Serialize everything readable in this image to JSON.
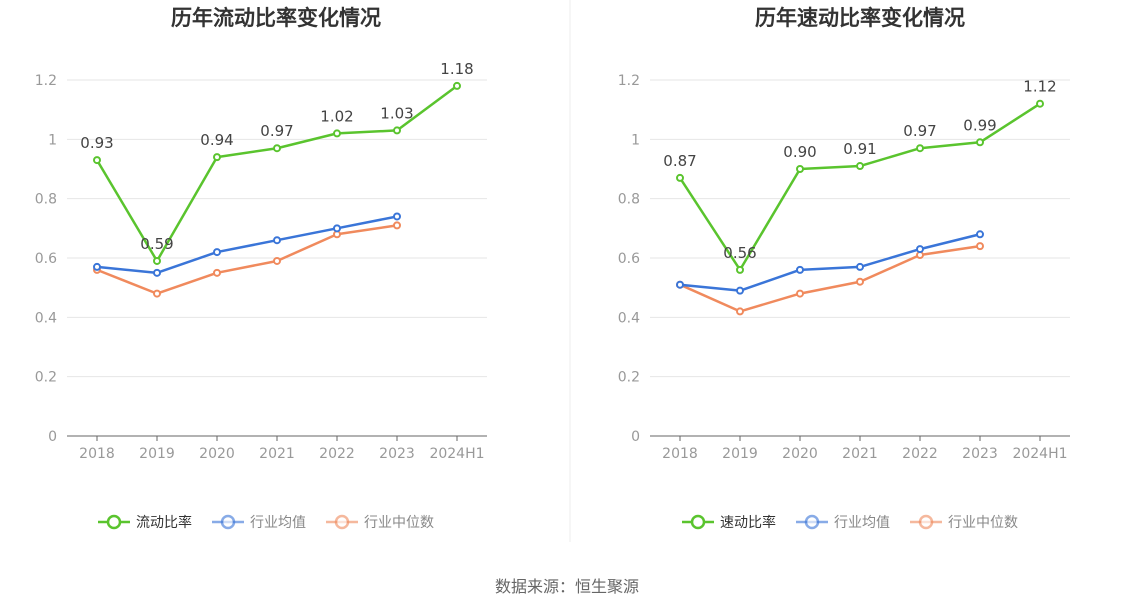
{
  "source": "数据来源：恒生聚源",
  "colors": {
    "green": "#5ac42e",
    "blue": "#3a75d8",
    "orange": "#f08a5d"
  },
  "chart_data": [
    {
      "type": "line",
      "title": "历年流动比率变化情况",
      "categories": [
        "2018",
        "2019",
        "2020",
        "2021",
        "2022",
        "2023",
        "2024H1"
      ],
      "ylim": [
        0,
        1.2
      ],
      "yticks": [
        "0",
        "0.2",
        "0.4",
        "0.6",
        "0.8",
        "1",
        "1.2"
      ],
      "grid": true,
      "legend_position": "bottom",
      "series": [
        {
          "name": "流动比率",
          "color": "#5ac42e",
          "values": [
            0.93,
            0.59,
            0.94,
            0.97,
            1.02,
            1.03,
            1.18
          ],
          "labels": [
            "0.93",
            "0.59",
            "0.94",
            "0.97",
            "1.02",
            "1.03",
            "1.18"
          ]
        },
        {
          "name": "行业均值",
          "color": "#3a75d8",
          "values": [
            0.57,
            0.55,
            0.62,
            0.66,
            0.7,
            0.74,
            null
          ]
        },
        {
          "name": "行业中位数",
          "color": "#f08a5d",
          "values": [
            0.56,
            0.48,
            0.55,
            0.59,
            0.68,
            0.71,
            null
          ]
        }
      ]
    },
    {
      "type": "line",
      "title": "历年速动比率变化情况",
      "categories": [
        "2018",
        "2019",
        "2020",
        "2021",
        "2022",
        "2023",
        "2024H1"
      ],
      "ylim": [
        0,
        1.2
      ],
      "yticks": [
        "0",
        "0.2",
        "0.4",
        "0.6",
        "0.8",
        "1",
        "1.2"
      ],
      "grid": true,
      "legend_position": "bottom",
      "series": [
        {
          "name": "速动比率",
          "color": "#5ac42e",
          "values": [
            0.87,
            0.56,
            0.9,
            0.91,
            0.97,
            0.99,
            1.12
          ],
          "labels": [
            "0.87",
            "0.56",
            "0.90",
            "0.91",
            "0.97",
            "0.99",
            "1.12"
          ]
        },
        {
          "name": "行业均值",
          "color": "#3a75d8",
          "values": [
            0.51,
            0.49,
            0.56,
            0.57,
            0.63,
            0.68,
            null
          ]
        },
        {
          "name": "行业中位数",
          "color": "#f08a5d",
          "values": [
            0.51,
            0.42,
            0.48,
            0.52,
            0.61,
            0.64,
            null
          ]
        }
      ]
    }
  ]
}
